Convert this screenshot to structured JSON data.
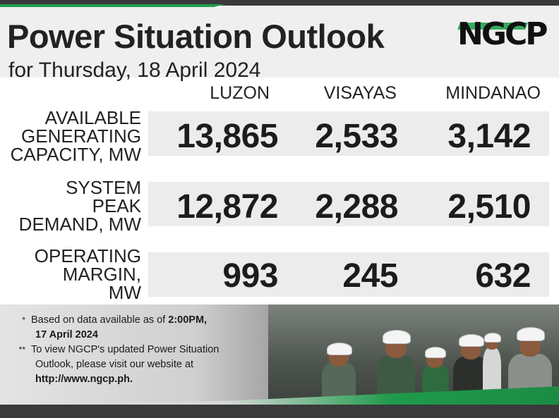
{
  "header": {
    "title": "Power Situation Outlook",
    "subtitle": "for Thursday, 18 April 2024",
    "logo_text": "NGCP"
  },
  "columns": [
    "LUZON",
    "VISAYAS",
    "MINDANAO"
  ],
  "rows": [
    {
      "label_lines": [
        "AVAILABLE",
        "GENERATING",
        "CAPACITY, MW"
      ],
      "values": [
        "13,865",
        "2,533",
        "3,142"
      ]
    },
    {
      "label_lines": [
        "SYSTEM",
        "PEAK",
        "DEMAND, MW"
      ],
      "values": [
        "12,872",
        "2,288",
        "2,510"
      ]
    },
    {
      "label_lines": [
        "OPERATING",
        "MARGIN,",
        "MW"
      ],
      "values": [
        "993",
        "245",
        "632"
      ]
    }
  ],
  "notes": {
    "note1_mark": "*",
    "note1_text": "Based on data available as of ",
    "note1_bold": "2:00PM,",
    "note1_line2_bold": "17 April 2024",
    "note2_mark": "**",
    "note2_text": "To view NGCP's updated Power Situation",
    "note2_line2": "Outlook, please visit our website at",
    "note2_line3_bold": "http://www.ngcp.ph."
  },
  "colors": {
    "brand_green": "#1e9e4d",
    "band_gray": "#ececec",
    "bar_dark": "#3a3a3a"
  }
}
